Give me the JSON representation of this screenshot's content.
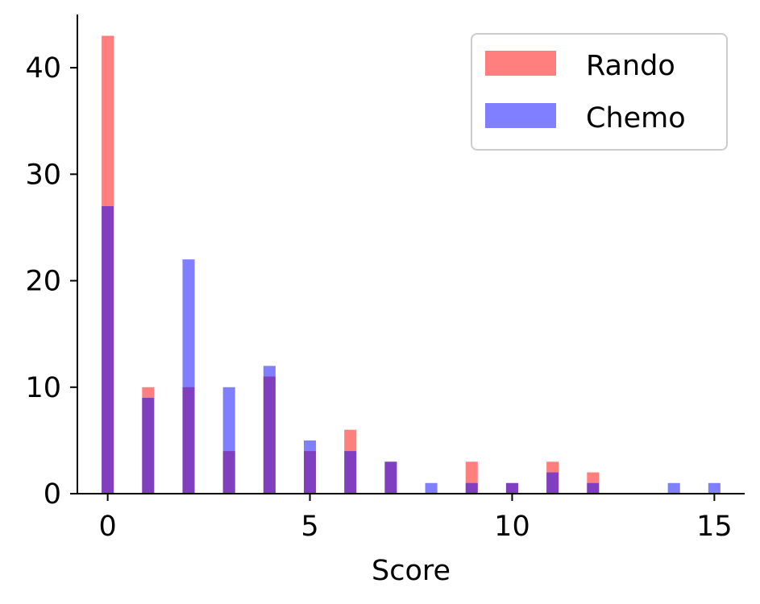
{
  "chart_data": {
    "type": "bar",
    "title": "",
    "xlabel": "Score",
    "ylabel": "",
    "xlim": [
      -0.75,
      15.75
    ],
    "ylim": [
      0,
      45
    ],
    "xticks": [
      0,
      5,
      10,
      15
    ],
    "yticks": [
      0,
      10,
      20,
      30,
      40
    ],
    "bin_width": 0.3,
    "grid": false,
    "legend_position": "top-right",
    "series": [
      {
        "name": "Rando",
        "color": "#ff0000",
        "opacity": 0.5,
        "x": [
          0,
          1,
          2,
          3,
          4,
          5,
          6,
          7,
          9,
          10,
          11,
          12
        ],
        "values": [
          43,
          10,
          10,
          4,
          11,
          4,
          6,
          3,
          3,
          1,
          3,
          2
        ]
      },
      {
        "name": "Chemo",
        "color": "#0000ff",
        "opacity": 0.5,
        "x": [
          0,
          1,
          2,
          3,
          4,
          5,
          6,
          7,
          8,
          9,
          10,
          11,
          12,
          14,
          15
        ],
        "values": [
          27,
          9,
          22,
          10,
          12,
          5,
          4,
          3,
          1,
          1,
          1,
          2,
          1,
          1,
          1
        ]
      }
    ]
  }
}
